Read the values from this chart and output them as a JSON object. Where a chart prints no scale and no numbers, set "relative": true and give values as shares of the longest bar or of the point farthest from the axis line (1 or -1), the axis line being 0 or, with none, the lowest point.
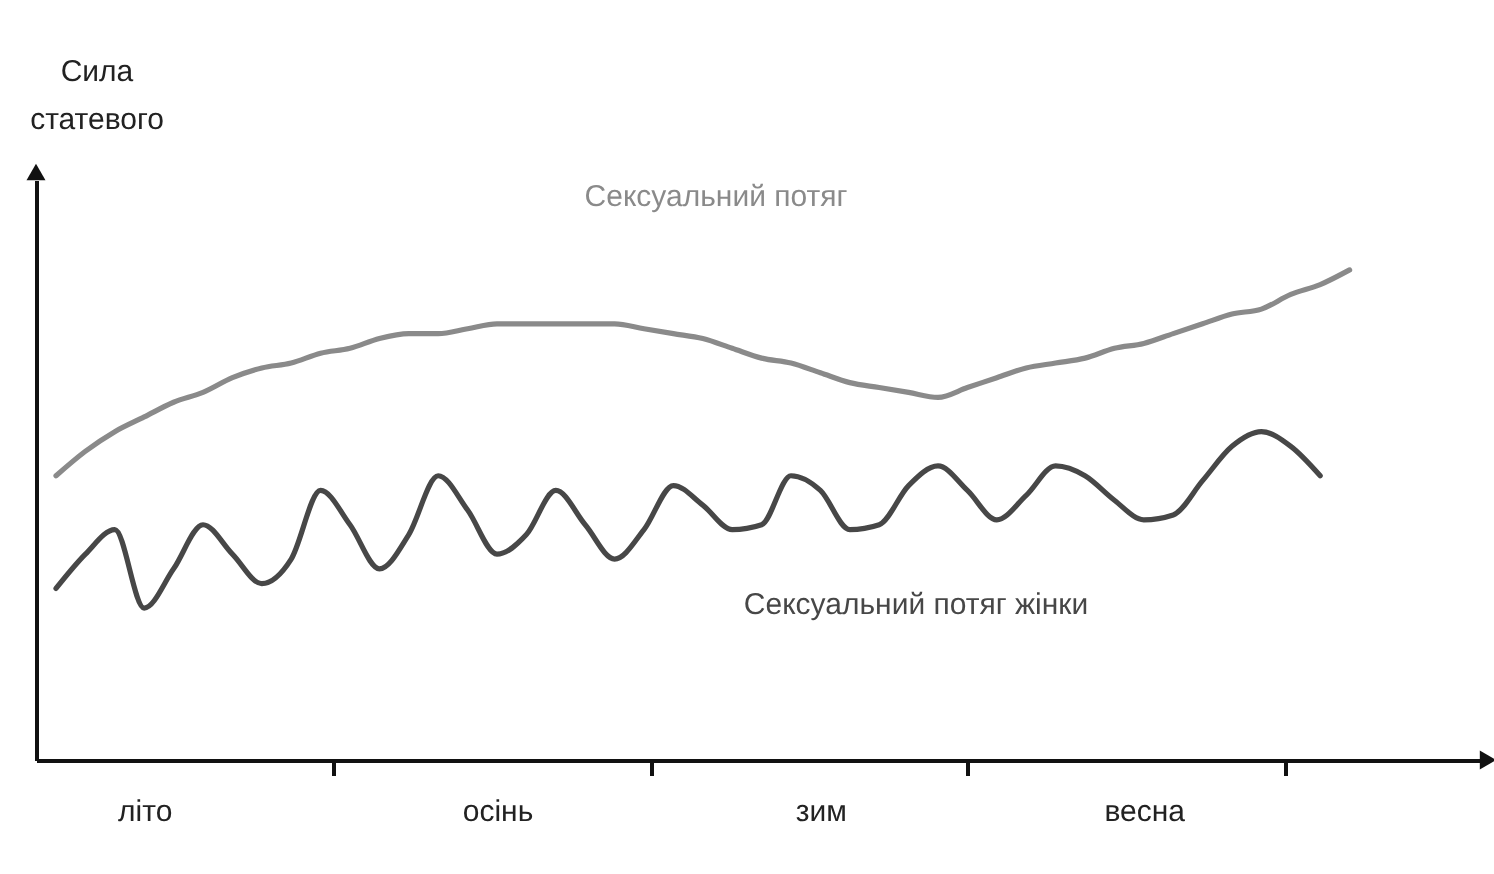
{
  "chart_data": {
    "type": "line",
    "relative": true,
    "ylabel": "Сила статевого",
    "categories": [
      null,
      null,
      null,
      "літо",
      null,
      null,
      null,
      null,
      null,
      null,
      null,
      null,
      null,
      null,
      null,
      "осінь",
      null,
      null,
      null,
      null,
      null,
      null,
      null,
      null,
      null,
      null,
      "зим",
      null,
      null,
      null,
      null,
      null,
      null,
      null,
      null,
      null,
      null,
      "весна",
      null,
      null,
      null,
      null,
      null,
      null,
      null
    ],
    "grid": false,
    "legend": false,
    "marker": "none",
    "line_style": "solid",
    "series": [
      {
        "name": "Сексуальний потяг",
        "color": "#8a8a8a",
        "values": [
          0.58,
          0.63,
          0.67,
          0.7,
          0.73,
          0.75,
          0.78,
          0.8,
          0.81,
          0.83,
          0.84,
          0.86,
          0.87,
          0.87,
          0.88,
          0.89,
          0.89,
          0.89,
          0.89,
          0.89,
          0.88,
          0.87,
          0.86,
          0.84,
          0.82,
          0.81,
          0.79,
          0.77,
          0.76,
          0.75,
          0.74,
          0.76,
          0.78,
          0.8,
          0.81,
          0.82,
          0.84,
          0.85,
          0.87,
          0.89,
          0.91,
          0.92,
          0.95,
          0.97,
          1
        ]
      },
      {
        "name": "Сексуальний потяг жінки",
        "color": "#474747",
        "values": [
          0.35,
          0.42,
          0.47,
          0.31,
          0.39,
          0.48,
          0.42,
          0.36,
          0.41,
          0.55,
          0.48,
          0.39,
          0.46,
          0.58,
          0.51,
          0.42,
          0.46,
          0.55,
          0.48,
          0.41,
          0.47,
          0.56,
          0.52,
          0.47,
          0.48,
          0.58,
          0.55,
          0.47,
          0.48,
          0.56,
          0.6,
          0.55,
          0.49,
          0.54,
          0.6,
          0.58,
          0.53,
          0.49,
          0.5,
          0.57,
          0.64,
          0.67,
          0.64,
          0.58,
          null
        ]
      }
    ]
  }
}
